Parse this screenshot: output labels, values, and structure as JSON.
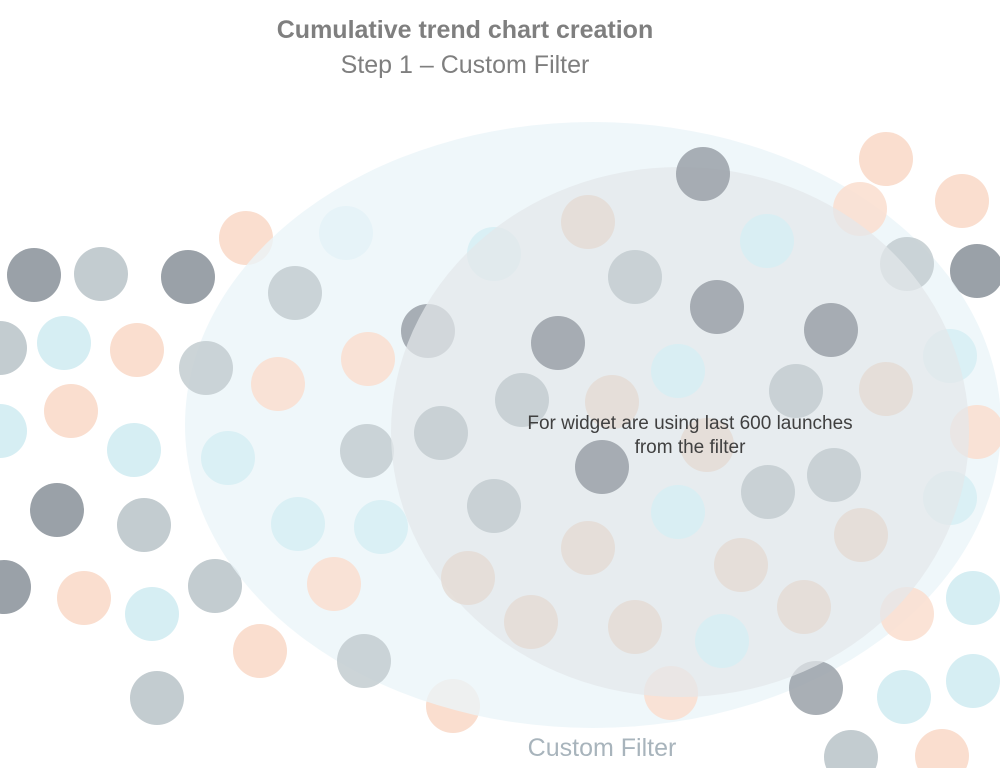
{
  "header": {
    "title": "Cumulative trend chart creation",
    "subtitle": "Step 1 – Custom Filter"
  },
  "callout": {
    "line1": "For widget are using last 600 launches",
    "line2": "from the filter"
  },
  "filter": {
    "label": "Custom Filter"
  },
  "colors": {
    "dark": "#9aa1a8",
    "gray": "#c3ccd0",
    "blue": "#d6eef3",
    "peach": "#fadecf",
    "beige": "#e4dcd5",
    "outer_ellipse": "#eaf5f9",
    "inner_ellipse": "#e3e8ea"
  }
}
